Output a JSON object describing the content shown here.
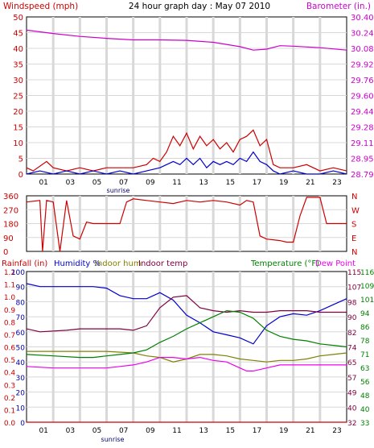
{
  "chart_data": [
    {
      "type": "line",
      "panel": "wind-barometer",
      "title": "24 hour graph day : May 07 2010",
      "left_axis_title": "Windspeed (mph)",
      "right_axis_title": "Barometer (in.)",
      "x_ticks": [
        "01",
        "03",
        "05",
        "07",
        "09",
        "11",
        "13",
        "15",
        "17",
        "19",
        "21",
        "23"
      ],
      "x_range": [
        0,
        24
      ],
      "annotation": "sunrise",
      "left_ticks": [
        "0",
        "5",
        "10",
        "15",
        "20",
        "25",
        "30",
        "35",
        "40",
        "45",
        "50"
      ],
      "left_range": [
        0,
        50
      ],
      "right_ticks": [
        "28.79",
        "28.95",
        "29.11",
        "29.28",
        "29.44",
        "29.60",
        "29.76",
        "29.92",
        "30.08",
        "30.24",
        "30.40"
      ],
      "right_range": [
        28.79,
        30.4
      ],
      "grid": true,
      "series": [
        {
          "color": "#cc00cc",
          "axis": "right",
          "points": [
            [
              0,
              30.265
            ],
            [
              2,
              30.23
            ],
            [
              4,
              30.2
            ],
            [
              6,
              30.18
            ],
            [
              8,
              30.165
            ],
            [
              10,
              30.165
            ],
            [
              12,
              30.16
            ],
            [
              14,
              30.14
            ],
            [
              16,
              30.095
            ],
            [
              17,
              30.06
            ],
            [
              18,
              30.07
            ],
            [
              19,
              30.105
            ],
            [
              20,
              30.1
            ],
            [
              22,
              30.085
            ],
            [
              24,
              30.06
            ]
          ]
        },
        {
          "color": "#cc0000",
          "axis": "left",
          "points": [
            [
              0,
              2
            ],
            [
              0.5,
              1
            ],
            [
              1.5,
              4
            ],
            [
              2,
              2
            ],
            [
              3,
              1
            ],
            [
              4,
              2
            ],
            [
              5,
              1
            ],
            [
              6,
              2
            ],
            [
              7,
              2
            ],
            [
              8,
              2
            ],
            [
              9,
              3
            ],
            [
              9.5,
              5
            ],
            [
              10,
              4
            ],
            [
              10.5,
              7
            ],
            [
              11,
              12
            ],
            [
              11.5,
              9
            ],
            [
              12,
              13
            ],
            [
              12.5,
              8
            ],
            [
              13,
              12
            ],
            [
              13.5,
              9
            ],
            [
              14,
              11
            ],
            [
              14.5,
              8
            ],
            [
              15,
              10
            ],
            [
              15.5,
              7
            ],
            [
              16,
              11
            ],
            [
              16.5,
              12
            ],
            [
              17,
              14
            ],
            [
              17.5,
              9
            ],
            [
              18,
              11
            ],
            [
              18.5,
              3
            ],
            [
              19,
              2
            ],
            [
              20,
              2
            ],
            [
              21,
              3
            ],
            [
              22,
              1
            ],
            [
              23,
              2
            ],
            [
              24,
              1
            ]
          ]
        },
        {
          "color": "#0000cc",
          "axis": "left",
          "points": [
            [
              0,
              0
            ],
            [
              1,
              1
            ],
            [
              2,
              0
            ],
            [
              3,
              1
            ],
            [
              4,
              0
            ],
            [
              5,
              1
            ],
            [
              6,
              0
            ],
            [
              7,
              1
            ],
            [
              8,
              0
            ],
            [
              9,
              1
            ],
            [
              10,
              2
            ],
            [
              10.5,
              3
            ],
            [
              11,
              4
            ],
            [
              11.5,
              3
            ],
            [
              12,
              5
            ],
            [
              12.5,
              3
            ],
            [
              13,
              5
            ],
            [
              13.5,
              2
            ],
            [
              14,
              4
            ],
            [
              14.5,
              3
            ],
            [
              15,
              4
            ],
            [
              15.5,
              3
            ],
            [
              16,
              5
            ],
            [
              16.5,
              4
            ],
            [
              17,
              7
            ],
            [
              17.5,
              4
            ],
            [
              18,
              3
            ],
            [
              18.5,
              1
            ],
            [
              19,
              0
            ],
            [
              20,
              1
            ],
            [
              21,
              0
            ],
            [
              22,
              0
            ],
            [
              23,
              1
            ],
            [
              24,
              0
            ]
          ]
        }
      ]
    },
    {
      "type": "line",
      "panel": "wind-direction",
      "x_ticks": [
        "01",
        "03",
        "05",
        "07",
        "09",
        "11",
        "13",
        "15",
        "17",
        "19",
        "21",
        "23"
      ],
      "x_range": [
        0,
        24
      ],
      "left_ticks": [
        "0",
        "90",
        "180",
        "270",
        "360"
      ],
      "left_range": [
        0,
        360
      ],
      "right_ticks": [
        "N",
        "E",
        "S",
        "W",
        "N"
      ],
      "grid": true,
      "series": [
        {
          "color": "#cc0000",
          "points": [
            [
              0,
              320
            ],
            [
              1,
              330
            ],
            [
              1.2,
              0
            ],
            [
              1.5,
              330
            ],
            [
              2,
              320
            ],
            [
              2.5,
              0
            ],
            [
              3,
              330
            ],
            [
              3.5,
              100
            ],
            [
              4,
              80
            ],
            [
              4.5,
              190
            ],
            [
              5,
              180
            ],
            [
              6,
              180
            ],
            [
              7,
              180
            ],
            [
              7.5,
              320
            ],
            [
              8,
              340
            ],
            [
              9,
              330
            ],
            [
              10,
              320
            ],
            [
              11,
              310
            ],
            [
              12,
              330
            ],
            [
              13,
              320
            ],
            [
              14,
              330
            ],
            [
              15,
              320
            ],
            [
              16,
              300
            ],
            [
              16.5,
              330
            ],
            [
              17,
              320
            ],
            [
              17.5,
              100
            ],
            [
              18,
              80
            ],
            [
              19,
              70
            ],
            [
              19.5,
              60
            ],
            [
              20,
              60
            ],
            [
              20.5,
              230
            ],
            [
              21,
              350
            ],
            [
              22,
              350
            ],
            [
              22.5,
              180
            ],
            [
              24,
              180
            ]
          ]
        }
      ]
    },
    {
      "type": "line",
      "panel": "temperature-humidity",
      "legend": [
        "Rainfall (in)",
        "Humidity %",
        "Indoor hum",
        "Indoor temp",
        "Temperature (°F)",
        "Dew Point"
      ],
      "annotation": "sunrise",
      "x_ticks": [
        "01",
        "03",
        "05",
        "07",
        "09",
        "11",
        "13",
        "15",
        "17",
        "19",
        "21",
        "23"
      ],
      "x_range": [
        0,
        24
      ],
      "rain_ticks": [
        "0.0",
        "0.1",
        "0.2",
        "0.3",
        "0.4",
        "0.5",
        "0.6",
        "0.7",
        "0.8",
        "0.9",
        "1.0",
        "1.1",
        "1.2"
      ],
      "humidity_ticks": [
        "0",
        "10",
        "20",
        "30",
        "40",
        "50",
        "60",
        "70",
        "80",
        "90",
        "100"
      ],
      "temp_ticks": [
        "32",
        "40",
        "49",
        "57",
        "65",
        "74",
        "82",
        "90",
        "98",
        "107",
        "115"
      ],
      "temp_ticks_alt": [
        "33",
        "40",
        "48",
        "56",
        "63",
        "71",
        "78",
        "86",
        "94",
        "101",
        "109",
        "116"
      ],
      "grid": true,
      "series": [
        {
          "name": "Humidity %",
          "color": "#0000cc",
          "points": [
            [
              0,
              92
            ],
            [
              1,
              90
            ],
            [
              2,
              90
            ],
            [
              3,
              90
            ],
            [
              4,
              90
            ],
            [
              5,
              90
            ],
            [
              6,
              89
            ],
            [
              7,
              84
            ],
            [
              8,
              82
            ],
            [
              9,
              82
            ],
            [
              10,
              86
            ],
            [
              11,
              81
            ],
            [
              12,
              71
            ],
            [
              13,
              66
            ],
            [
              14,
              60
            ],
            [
              15,
              58
            ],
            [
              16,
              56
            ],
            [
              17,
              52
            ],
            [
              18,
              64
            ],
            [
              19,
              70
            ],
            [
              20,
              72
            ],
            [
              21,
              71
            ],
            [
              22,
              74
            ],
            [
              23,
              78
            ],
            [
              24,
              82
            ]
          ]
        },
        {
          "name": "Indoor hum",
          "color": "#808000",
          "points": [
            [
              0,
              47
            ],
            [
              2,
              47
            ],
            [
              4,
              47
            ],
            [
              6,
              47
            ],
            [
              8,
              46
            ],
            [
              9,
              44
            ],
            [
              10,
              43
            ],
            [
              11,
              40
            ],
            [
              12,
              42
            ],
            [
              13,
              45
            ],
            [
              14,
              45
            ],
            [
              15,
              44
            ],
            [
              16,
              42
            ],
            [
              17,
              41
            ],
            [
              18,
              40
            ],
            [
              19,
              41
            ],
            [
              20,
              41
            ],
            [
              21,
              42
            ],
            [
              22,
              44
            ],
            [
              23,
              45
            ],
            [
              24,
              46
            ]
          ]
        },
        {
          "name": "Indoor temp",
          "color": "#800040",
          "points": [
            [
              0,
              62
            ],
            [
              1,
              60
            ],
            [
              3,
              61
            ],
            [
              4,
              62
            ],
            [
              5,
              62
            ],
            [
              6,
              62
            ],
            [
              7,
              62
            ],
            [
              8,
              61
            ],
            [
              9,
              64
            ],
            [
              10,
              76
            ],
            [
              11,
              83
            ],
            [
              12,
              84
            ],
            [
              13,
              76
            ],
            [
              14,
              74
            ],
            [
              15,
              73
            ],
            [
              16,
              74
            ],
            [
              17,
              73
            ],
            [
              18,
              73
            ],
            [
              19,
              74
            ],
            [
              20,
              74
            ],
            [
              21,
              74
            ],
            [
              22,
              73
            ],
            [
              23,
              73
            ],
            [
              24,
              73
            ]
          ]
        },
        {
          "name": "Temperature (°F)",
          "color": "#008000",
          "points": [
            [
              0,
              45
            ],
            [
              2,
              44
            ],
            [
              4,
              43
            ],
            [
              5,
              43
            ],
            [
              6,
              44
            ],
            [
              7,
              45
            ],
            [
              8,
              46
            ],
            [
              9,
              48
            ],
            [
              10,
              53
            ],
            [
              11,
              57
            ],
            [
              12,
              62
            ],
            [
              13,
              66
            ],
            [
              14,
              70
            ],
            [
              15,
              74
            ],
            [
              16,
              73
            ],
            [
              17,
              69
            ],
            [
              18,
              61
            ],
            [
              19,
              57
            ],
            [
              20,
              55
            ],
            [
              21,
              54
            ],
            [
              22,
              52
            ],
            [
              23,
              51
            ],
            [
              24,
              50
            ]
          ]
        },
        {
          "name": "Dew Point",
          "color": "#ee00ee",
          "points": [
            [
              0,
              37
            ],
            [
              2,
              36
            ],
            [
              4,
              36
            ],
            [
              6,
              36
            ],
            [
              7,
              37
            ],
            [
              8,
              38
            ],
            [
              9,
              40
            ],
            [
              10,
              43
            ],
            [
              11,
              43
            ],
            [
              12,
              42
            ],
            [
              13,
              43
            ],
            [
              14,
              41
            ],
            [
              15,
              40
            ],
            [
              16,
              36
            ],
            [
              16.5,
              34
            ],
            [
              17,
              34
            ],
            [
              18,
              36
            ],
            [
              19,
              38
            ],
            [
              20,
              38
            ],
            [
              21,
              38
            ],
            [
              22,
              38
            ],
            [
              23,
              38
            ],
            [
              24,
              38
            ]
          ]
        },
        {
          "name": "Rainfall (in)",
          "color": "#cc0000",
          "points": [
            [
              0,
              0
            ],
            [
              24,
              0
            ]
          ]
        }
      ]
    }
  ]
}
